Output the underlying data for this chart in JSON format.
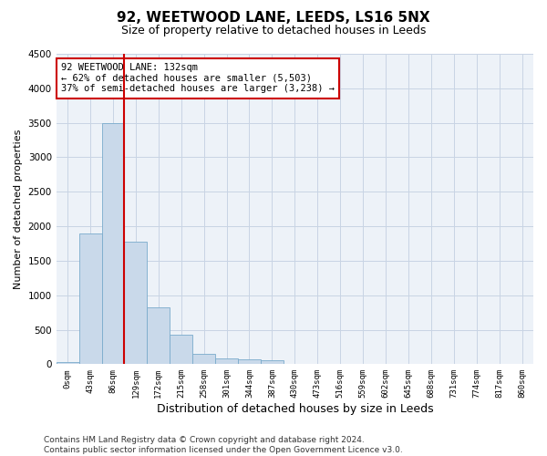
{
  "title": "92, WEETWOOD LANE, LEEDS, LS16 5NX",
  "subtitle": "Size of property relative to detached houses in Leeds",
  "xlabel": "Distribution of detached houses by size in Leeds",
  "ylabel": "Number of detached properties",
  "bar_color": "#c9d9ea",
  "bar_edge_color": "#7aaBcc",
  "vline_color": "#cc0000",
  "vline_x": 2.5,
  "annotation_text": "92 WEETWOOD LANE: 132sqm\n← 62% of detached houses are smaller (5,503)\n37% of semi-detached houses are larger (3,238) →",
  "annotation_box_color": "#ffffff",
  "annotation_box_edge": "#cc0000",
  "categories": [
    "0sqm",
    "43sqm",
    "86sqm",
    "129sqm",
    "172sqm",
    "215sqm",
    "258sqm",
    "301sqm",
    "344sqm",
    "387sqm",
    "430sqm",
    "473sqm",
    "516sqm",
    "559sqm",
    "602sqm",
    "645sqm",
    "688sqm",
    "731sqm",
    "774sqm",
    "817sqm",
    "860sqm"
  ],
  "values": [
    30,
    1900,
    3500,
    1780,
    820,
    430,
    155,
    90,
    65,
    55,
    0,
    0,
    0,
    0,
    0,
    0,
    0,
    0,
    0,
    0,
    0
  ],
  "ylim": [
    0,
    4500
  ],
  "yticks": [
    0,
    500,
    1000,
    1500,
    2000,
    2500,
    3000,
    3500,
    4000,
    4500
  ],
  "footer": "Contains HM Land Registry data © Crown copyright and database right 2024.\nContains public sector information licensed under the Open Government Licence v3.0.",
  "title_fontsize": 11,
  "subtitle_fontsize": 9,
  "xlabel_fontsize": 9,
  "ylabel_fontsize": 8,
  "footer_fontsize": 6.5,
  "grid_color": "#c8d4e4",
  "background_color": "#edf2f8"
}
